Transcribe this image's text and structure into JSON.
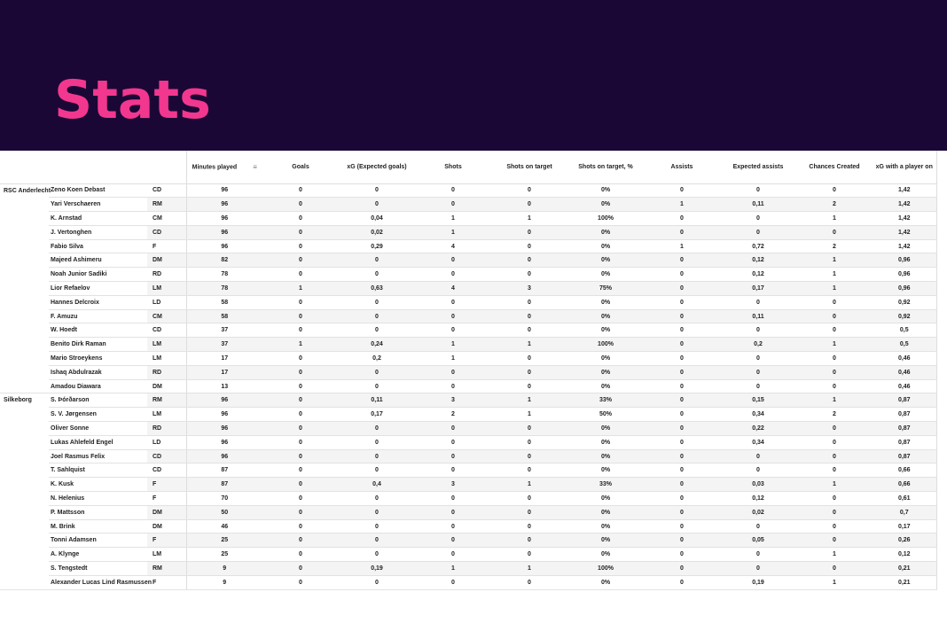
{
  "title": "Stats",
  "columns": [
    "Minutes played",
    "Goals",
    "xG (Expected goals)",
    "Shots",
    "Shots on target",
    "Shots on target, %",
    "Assists",
    "Expected assists",
    "Chances Created",
    "xG with a player on"
  ],
  "sort_icon": "sort-descending-icon",
  "teams": [
    {
      "name": "RSC Anderlecht",
      "rows": [
        [
          "Zeno Koen Debast",
          "CD",
          "96",
          "0",
          "0",
          "0",
          "0",
          "0%",
          "0",
          "0",
          "0",
          "1,42"
        ],
        [
          "Yari Verschaeren",
          "RM",
          "96",
          "0",
          "0",
          "0",
          "0",
          "0%",
          "1",
          "0,11",
          "2",
          "1,42"
        ],
        [
          "K. Arnstad",
          "CM",
          "96",
          "0",
          "0,04",
          "1",
          "1",
          "100%",
          "0",
          "0",
          "1",
          "1,42"
        ],
        [
          "J. Vertonghen",
          "CD",
          "96",
          "0",
          "0,02",
          "1",
          "0",
          "0%",
          "0",
          "0",
          "0",
          "1,42"
        ],
        [
          "Fabio Silva",
          "F",
          "96",
          "0",
          "0,29",
          "4",
          "0",
          "0%",
          "1",
          "0,72",
          "2",
          "1,42"
        ],
        [
          "Majeed Ashimeru",
          "DM",
          "82",
          "0",
          "0",
          "0",
          "0",
          "0%",
          "0",
          "0,12",
          "1",
          "0,96"
        ],
        [
          "Noah Junior Sadiki",
          "RD",
          "78",
          "0",
          "0",
          "0",
          "0",
          "0%",
          "0",
          "0,12",
          "1",
          "0,96"
        ],
        [
          "Lior Refaelov",
          "LM",
          "78",
          "1",
          "0,63",
          "4",
          "3",
          "75%",
          "0",
          "0,17",
          "1",
          "0,96"
        ],
        [
          "Hannes Delcroix",
          "LD",
          "58",
          "0",
          "0",
          "0",
          "0",
          "0%",
          "0",
          "0",
          "0",
          "0,92"
        ],
        [
          "F. Amuzu",
          "CM",
          "58",
          "0",
          "0",
          "0",
          "0",
          "0%",
          "0",
          "0,11",
          "0",
          "0,92"
        ],
        [
          "W. Hoedt",
          "CD",
          "37",
          "0",
          "0",
          "0",
          "0",
          "0%",
          "0",
          "0",
          "0",
          "0,5"
        ],
        [
          "Benito Dirk Raman",
          "LM",
          "37",
          "1",
          "0,24",
          "1",
          "1",
          "100%",
          "0",
          "0,2",
          "1",
          "0,5"
        ],
        [
          "Mario Stroeykens",
          "LM",
          "17",
          "0",
          "0,2",
          "1",
          "0",
          "0%",
          "0",
          "0",
          "0",
          "0,46"
        ],
        [
          "Ishaq Abdulrazak",
          "RD",
          "17",
          "0",
          "0",
          "0",
          "0",
          "0%",
          "0",
          "0",
          "0",
          "0,46"
        ],
        [
          "Amadou Diawara",
          "DM",
          "13",
          "0",
          "0",
          "0",
          "0",
          "0%",
          "0",
          "0",
          "0",
          "0,46"
        ]
      ]
    },
    {
      "name": "Silkeborg",
      "rows": [
        [
          "S. Þórðarson",
          "RM",
          "96",
          "0",
          "0,11",
          "3",
          "1",
          "33%",
          "0",
          "0,15",
          "1",
          "0,87"
        ],
        [
          "S. V. Jørgensen",
          "LM",
          "96",
          "0",
          "0,17",
          "2",
          "1",
          "50%",
          "0",
          "0,34",
          "2",
          "0,87"
        ],
        [
          "Oliver Sonne",
          "RD",
          "96",
          "0",
          "0",
          "0",
          "0",
          "0%",
          "0",
          "0,22",
          "0",
          "0,87"
        ],
        [
          "Lukas Ahlefeld Engel",
          "LD",
          "96",
          "0",
          "0",
          "0",
          "0",
          "0%",
          "0",
          "0,34",
          "0",
          "0,87"
        ],
        [
          "Joel Rasmus Felix",
          "CD",
          "96",
          "0",
          "0",
          "0",
          "0",
          "0%",
          "0",
          "0",
          "0",
          "0,87"
        ],
        [
          "T. Sahlquist",
          "CD",
          "87",
          "0",
          "0",
          "0",
          "0",
          "0%",
          "0",
          "0",
          "0",
          "0,66"
        ],
        [
          "K. Kusk",
          "F",
          "87",
          "0",
          "0,4",
          "3",
          "1",
          "33%",
          "0",
          "0,03",
          "1",
          "0,66"
        ],
        [
          "N. Helenius",
          "F",
          "70",
          "0",
          "0",
          "0",
          "0",
          "0%",
          "0",
          "0,12",
          "0",
          "0,61"
        ],
        [
          "P. Mattsson",
          "DM",
          "50",
          "0",
          "0",
          "0",
          "0",
          "0%",
          "0",
          "0,02",
          "0",
          "0,7"
        ],
        [
          "M. Brink",
          "DM",
          "46",
          "0",
          "0",
          "0",
          "0",
          "0%",
          "0",
          "0",
          "0",
          "0,17"
        ],
        [
          "Tonni Adamsen",
          "F",
          "25",
          "0",
          "0",
          "0",
          "0",
          "0%",
          "0",
          "0,05",
          "0",
          "0,26"
        ],
        [
          "A. Klynge",
          "LM",
          "25",
          "0",
          "0",
          "0",
          "0",
          "0%",
          "0",
          "0",
          "1",
          "0,12"
        ],
        [
          "S. Tengstedt",
          "RM",
          "9",
          "0",
          "0,19",
          "1",
          "1",
          "100%",
          "0",
          "0",
          "0",
          "0,21"
        ],
        [
          "Alexander Lucas Lind Rasmussen",
          "F",
          "9",
          "0",
          "0",
          "0",
          "0",
          "0%",
          "0",
          "0,19",
          "1",
          "0,21"
        ]
      ]
    }
  ]
}
